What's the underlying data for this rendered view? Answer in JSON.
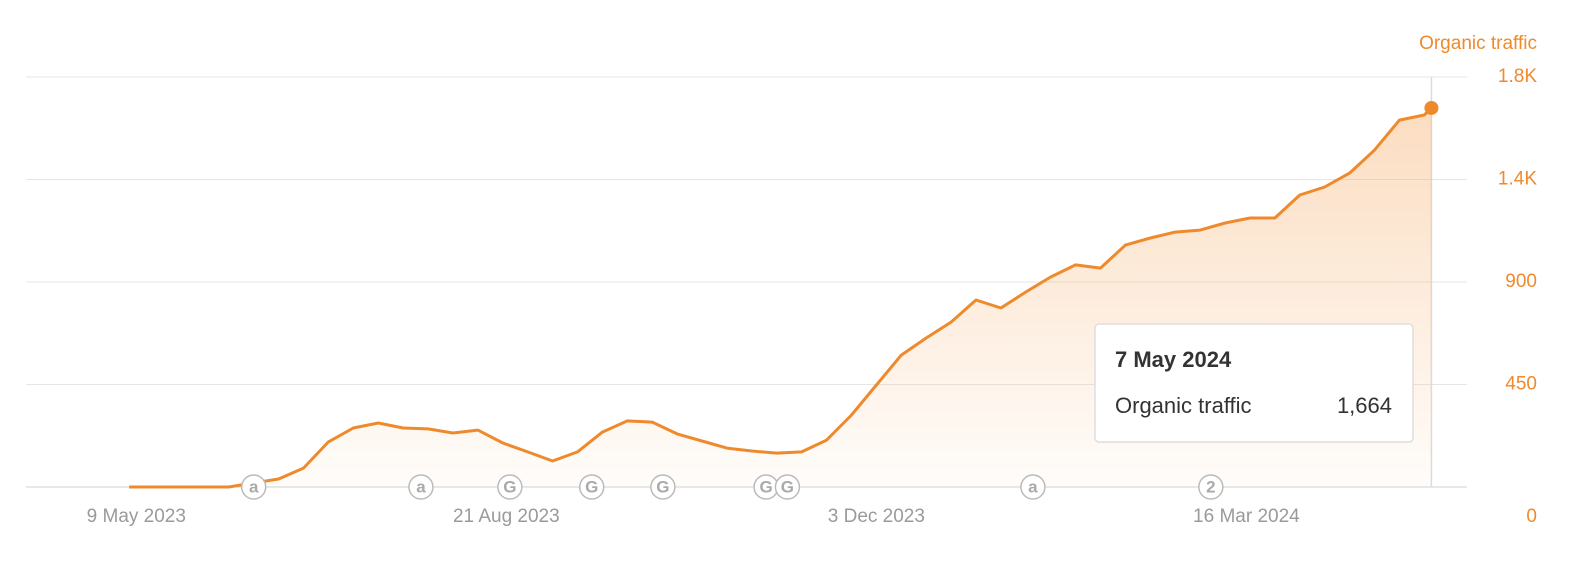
{
  "chart_data": {
    "type": "area",
    "y_label": "Organic traffic",
    "x": [
      "2023-05-07",
      "2023-05-14",
      "2023-05-21",
      "2023-05-28",
      "2023-06-04",
      "2023-06-11",
      "2023-06-18",
      "2023-06-25",
      "2023-07-02",
      "2023-07-09",
      "2023-07-16",
      "2023-07-23",
      "2023-07-30",
      "2023-08-06",
      "2023-08-13",
      "2023-08-20",
      "2023-08-27",
      "2023-09-03",
      "2023-09-10",
      "2023-09-17",
      "2023-09-24",
      "2023-10-01",
      "2023-10-08",
      "2023-10-15",
      "2023-10-22",
      "2023-10-29",
      "2023-11-05",
      "2023-11-12",
      "2023-11-19",
      "2023-11-26",
      "2023-12-03",
      "2023-12-10",
      "2023-12-17",
      "2023-12-24",
      "2023-12-31",
      "2024-01-07",
      "2024-01-14",
      "2024-01-21",
      "2024-01-28",
      "2024-02-04",
      "2024-02-11",
      "2024-02-18",
      "2024-02-25",
      "2024-03-03",
      "2024-03-10",
      "2024-03-17",
      "2024-03-24",
      "2024-03-31",
      "2024-04-07",
      "2024-04-14",
      "2024-04-21",
      "2024-04-28",
      "2024-05-05",
      "2024-05-07"
    ],
    "series": [
      {
        "name": "Organic traffic",
        "color": "#ef8a2c",
        "values": [
          0,
          0,
          0,
          0,
          0,
          18,
          35,
          83,
          198,
          259,
          281,
          259,
          255,
          237,
          250,
          193,
          154,
          114,
          154,
          241,
          290,
          285,
          233,
          202,
          171,
          158,
          149,
          154,
          206,
          316,
          448,
          579,
          654,
          724,
          821,
          786,
          856,
          922,
          975,
          961,
          1062,
          1093,
          1119,
          1128,
          1159,
          1181,
          1181,
          1282,
          1317,
          1378,
          1479,
          1611,
          1633,
          1664
        ]
      }
    ],
    "xlim": [
      "2023-04-08",
      "2024-05-17"
    ],
    "xticks": [
      {
        "value": "2023-05-09",
        "label": "9 May 2023"
      },
      {
        "value": "2023-08-21",
        "label": "21 Aug 2023"
      },
      {
        "value": "2023-12-03",
        "label": "3 Dec 2023"
      },
      {
        "value": "2024-03-16",
        "label": "16 Mar 2024"
      }
    ],
    "ylim": [
      0,
      1800
    ],
    "yticks": [
      0,
      450,
      900,
      {
        "value": 1350,
        "label": "1.4K"
      },
      {
        "value": 1800,
        "label": "1.8K"
      }
    ],
    "grid": true,
    "annotations": [
      {
        "date": "2023-06-11",
        "label": "a"
      },
      {
        "date": "2023-07-28",
        "label": "a"
      },
      {
        "date": "2023-08-22",
        "label": "G"
      },
      {
        "date": "2023-09-14",
        "label": "G"
      },
      {
        "date": "2023-10-04",
        "label": "G"
      },
      {
        "date": "2023-11-02",
        "label": "G"
      },
      {
        "date": "2023-11-08",
        "label": "G"
      },
      {
        "date": "2024-01-16",
        "label": "a"
      },
      {
        "date": "2024-03-06",
        "label": "2"
      }
    ],
    "tooltip": {
      "title": "7 May 2024",
      "x": "2024-05-07",
      "value": 1664,
      "value_label": "1,664"
    }
  }
}
